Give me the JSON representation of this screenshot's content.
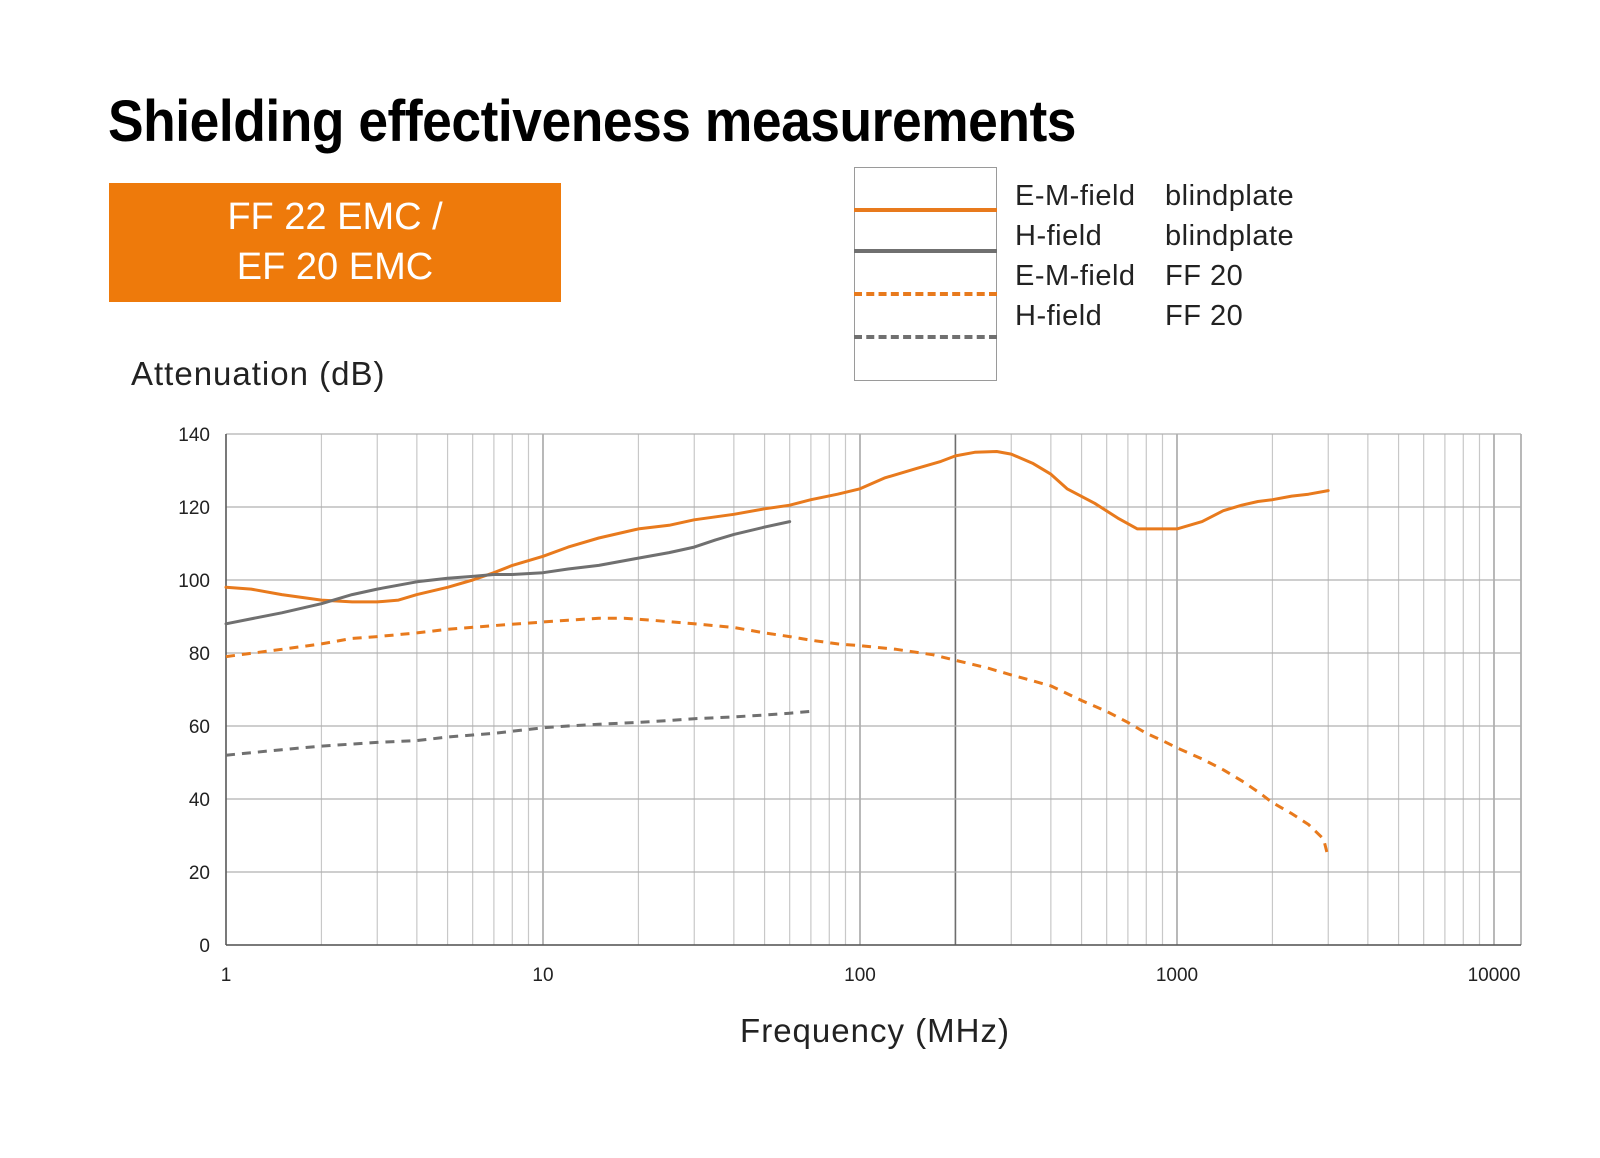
{
  "title": "Shielding effectiveness measurements",
  "badge": {
    "line1": "FF 22 EMC /",
    "line2": "EF 20 EMC"
  },
  "legend": [
    {
      "field": "E-M-field",
      "type": "blindplate",
      "color": "#e87a1d",
      "style": "solid"
    },
    {
      "field": "H-field",
      "type": "blindplate",
      "color": "#707070",
      "style": "solid"
    },
    {
      "field": "E-M-field",
      "type": "FF 20",
      "color": "#e87a1d",
      "style": "dashed"
    },
    {
      "field": "H-field",
      "type": "FF 20",
      "color": "#707070",
      "style": "dashed"
    }
  ],
  "chart_data": {
    "type": "line",
    "ylabel": "Attenuation (dB)",
    "xlabel": "Frequency (MHz)",
    "x_scale": "log",
    "xlim": [
      1,
      15000
    ],
    "ylim": [
      0,
      140
    ],
    "x_ticks": [
      "1",
      "10",
      "100",
      "1000",
      "10000"
    ],
    "y_ticks": [
      "0",
      "20",
      "40",
      "60",
      "80",
      "100",
      "120",
      "140"
    ],
    "grid": true,
    "series": [
      {
        "name": "E-M-field blindplate",
        "color": "#e87a1d",
        "style": "solid",
        "points": [
          [
            1,
            98
          ],
          [
            1.2,
            97.5
          ],
          [
            1.5,
            96
          ],
          [
            2,
            94.5
          ],
          [
            2.5,
            94
          ],
          [
            3,
            94
          ],
          [
            3.5,
            94.5
          ],
          [
            4,
            96
          ],
          [
            5,
            98
          ],
          [
            6,
            100
          ],
          [
            7,
            102
          ],
          [
            8,
            104
          ],
          [
            10,
            106.5
          ],
          [
            12,
            109
          ],
          [
            15,
            111.5
          ],
          [
            20,
            114
          ],
          [
            25,
            115
          ],
          [
            30,
            116.5
          ],
          [
            40,
            118
          ],
          [
            50,
            119.5
          ],
          [
            60,
            120.5
          ],
          [
            70,
            122
          ],
          [
            85,
            123.5
          ],
          [
            100,
            125
          ],
          [
            120,
            128
          ],
          [
            150,
            130.5
          ],
          [
            180,
            132.5
          ],
          [
            200,
            134
          ],
          [
            230,
            135
          ],
          [
            270,
            135.2
          ],
          [
            300,
            134.5
          ],
          [
            350,
            132
          ],
          [
            400,
            129
          ],
          [
            450,
            125
          ],
          [
            550,
            121
          ],
          [
            650,
            117
          ],
          [
            750,
            114
          ],
          [
            900,
            114
          ],
          [
            1000,
            114
          ],
          [
            1200,
            116
          ],
          [
            1400,
            119
          ],
          [
            1600,
            120.5
          ],
          [
            1800,
            121.5
          ],
          [
            2000,
            122
          ],
          [
            2300,
            123
          ],
          [
            2600,
            123.5
          ],
          [
            3000,
            124.5
          ]
        ]
      },
      {
        "name": "H-field blindplate",
        "color": "#707070",
        "style": "solid",
        "points": [
          [
            1,
            88
          ],
          [
            1.5,
            91
          ],
          [
            2,
            93.5
          ],
          [
            2.5,
            96
          ],
          [
            3,
            97.5
          ],
          [
            4,
            99.5
          ],
          [
            5,
            100.5
          ],
          [
            6,
            101
          ],
          [
            7,
            101.5
          ],
          [
            8,
            101.5
          ],
          [
            10,
            102
          ],
          [
            12,
            103
          ],
          [
            15,
            104
          ],
          [
            20,
            106
          ],
          [
            25,
            107.5
          ],
          [
            30,
            109
          ],
          [
            35,
            111
          ],
          [
            40,
            112.5
          ],
          [
            50,
            114.5
          ],
          [
            60,
            116
          ]
        ]
      },
      {
        "name": "E-M-field FF 20",
        "color": "#e87a1d",
        "style": "dashed",
        "points": [
          [
            1,
            79
          ],
          [
            1.5,
            81
          ],
          [
            2,
            82.5
          ],
          [
            2.5,
            84
          ],
          [
            3,
            84.5
          ],
          [
            4,
            85.5
          ],
          [
            5,
            86.5
          ],
          [
            7,
            87.5
          ],
          [
            10,
            88.5
          ],
          [
            12,
            89
          ],
          [
            15,
            89.5
          ],
          [
            18,
            89.5
          ],
          [
            22,
            89
          ],
          [
            30,
            88
          ],
          [
            40,
            87
          ],
          [
            50,
            85.5
          ],
          [
            60,
            84.5
          ],
          [
            70,
            83.5
          ],
          [
            85,
            82.5
          ],
          [
            100,
            82
          ],
          [
            130,
            81
          ],
          [
            170,
            79.5
          ],
          [
            200,
            78
          ],
          [
            250,
            76
          ],
          [
            300,
            74
          ],
          [
            400,
            71
          ],
          [
            500,
            67
          ],
          [
            600,
            64
          ],
          [
            700,
            61
          ],
          [
            800,
            58
          ],
          [
            900,
            56
          ],
          [
            1000,
            54
          ],
          [
            1200,
            51
          ],
          [
            1400,
            48
          ],
          [
            1600,
            45
          ],
          [
            1800,
            42
          ],
          [
            2000,
            39
          ],
          [
            2300,
            36
          ],
          [
            2600,
            33
          ],
          [
            2900,
            29
          ],
          [
            3000,
            24
          ]
        ]
      },
      {
        "name": "H-field FF 20",
        "color": "#707070",
        "style": "dashed",
        "points": [
          [
            1,
            52
          ],
          [
            1.5,
            53.5
          ],
          [
            2,
            54.5
          ],
          [
            3,
            55.5
          ],
          [
            4,
            56
          ],
          [
            5,
            57
          ],
          [
            7,
            58
          ],
          [
            10,
            59.5
          ],
          [
            12,
            60
          ],
          [
            15,
            60.5
          ],
          [
            20,
            61
          ],
          [
            25,
            61.5
          ],
          [
            30,
            62
          ],
          [
            40,
            62.5
          ],
          [
            50,
            63
          ],
          [
            60,
            63.5
          ],
          [
            70,
            64
          ]
        ]
      }
    ]
  }
}
